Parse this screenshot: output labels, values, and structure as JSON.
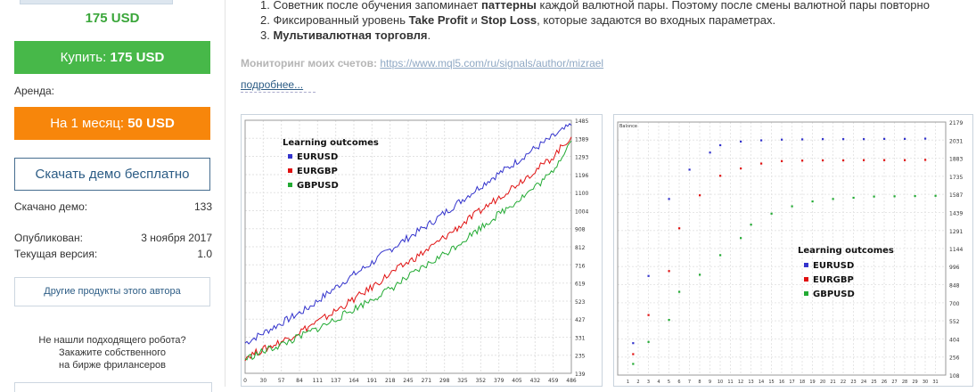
{
  "sidebar": {
    "price": "175 USD",
    "buy_label": "Купить:",
    "buy_price": "175 USD",
    "rent_label": "Аренда:",
    "rent_button_label": "На 1 месяц:",
    "rent_button_price": "50 USD",
    "demo_button": "Скачать демо бесплатно",
    "downloaded_label": "Скачано демо:",
    "downloaded_value": "133",
    "published_label": "Опубликован:",
    "published_value": "3 ноября 2017",
    "version_label": "Текущая версия:",
    "version_value": "1.0",
    "other_products": "Другие продукты этого автора",
    "freelance_line1": "Не нашли подходящего робота?",
    "freelance_line2": "Закажите собственного",
    "freelance_line3": "на бирже фрилансеров"
  },
  "description": {
    "items": [
      {
        "num": "1.",
        "pre": "Советник после обучения запоминает ",
        "bold": "паттерны",
        "post": " каждой валютной пары. Поэтому после смены валютной пары повторно"
      },
      {
        "num": "2.",
        "pre": "Фиксированный уровень ",
        "bold": "Take Profit",
        "mid": " и ",
        "bold2": "Stop Loss",
        "post": ", которые задаются во входных параметрах."
      },
      {
        "num": "3.",
        "pre": "",
        "bold": "Мультивалютная торговля",
        "post": "."
      }
    ],
    "monitoring_label": "Мониторинг моих счетов:",
    "monitoring_url": "https://www.mql5.com/ru/signals/author/mizrael",
    "more_link": "подробнее..."
  },
  "colors": {
    "buy": "#47b849",
    "rent": "#f7860b",
    "price": "#3aa63a",
    "eurusd": "#3333cc",
    "eurgbp": "#e01010",
    "gbpusd": "#22aa33"
  },
  "chart_data": [
    {
      "type": "line",
      "legend_title": "Learning outcomes",
      "series": [
        {
          "name": "EURUSD",
          "values": [
            300,
            360,
            420,
            480,
            560,
            640,
            710,
            790,
            860,
            930,
            1010,
            1090,
            1170,
            1240,
            1320,
            1390,
            1460
          ]
        },
        {
          "name": "EURGBP",
          "values": [
            225,
            270,
            320,
            380,
            440,
            510,
            580,
            660,
            730,
            800,
            880,
            960,
            1040,
            1120,
            1200,
            1280,
            1400
          ]
        },
        {
          "name": "GBPUSD",
          "values": [
            215,
            260,
            300,
            350,
            400,
            460,
            520,
            580,
            650,
            720,
            790,
            870,
            950,
            1030,
            1110,
            1200,
            1380
          ]
        }
      ],
      "x_ticks": [
        "0",
        "30",
        "57",
        "84",
        "111",
        "137",
        "164",
        "191",
        "218",
        "245",
        "271",
        "298",
        "325",
        "352",
        "379",
        "405",
        "432",
        "459",
        "486"
      ],
      "y_ticks": [
        "1485",
        "1389",
        "1293",
        "1196",
        "1100",
        "1004",
        "908",
        "812",
        "716",
        "619",
        "523",
        "427",
        "331",
        "235",
        "139"
      ],
      "ylim": [
        139,
        1485
      ],
      "legend_position": "top-left"
    },
    {
      "type": "scatter",
      "title": "Balance",
      "legend_title": "Learning outcomes",
      "x": [
        1,
        2,
        3,
        4,
        5,
        6,
        7,
        8,
        9,
        10,
        11,
        12,
        13,
        14,
        15,
        16,
        17,
        18,
        19,
        20,
        21,
        22,
        23,
        24,
        25,
        26,
        27,
        28,
        29,
        30,
        31
      ],
      "series": [
        {
          "name": "EURUSD",
          "points": [
            [
              1.5,
              370
            ],
            [
              3,
              920
            ],
            [
              5,
              1550
            ],
            [
              7,
              1790
            ],
            [
              9,
              1930
            ],
            [
              10,
              1990
            ],
            [
              12,
              2020
            ],
            [
              14,
              2030
            ],
            [
              16,
              2036
            ],
            [
              18,
              2038
            ],
            [
              20,
              2040
            ],
            [
              22,
              2040
            ],
            [
              24,
              2040
            ],
            [
              26,
              2042
            ],
            [
              28,
              2042
            ],
            [
              30,
              2044
            ]
          ]
        },
        {
          "name": "EURGBP",
          "points": [
            [
              1.5,
              280
            ],
            [
              3,
              600
            ],
            [
              5,
              960
            ],
            [
              6,
              1310
            ],
            [
              8,
              1580
            ],
            [
              10,
              1740
            ],
            [
              12,
              1800
            ],
            [
              14,
              1840
            ],
            [
              16,
              1860
            ],
            [
              18,
              1864
            ],
            [
              20,
              1866
            ],
            [
              22,
              1866
            ],
            [
              24,
              1868
            ],
            [
              26,
              1868
            ],
            [
              28,
              1868
            ],
            [
              30,
              1870
            ]
          ]
        },
        {
          "name": "GBPUSD",
          "points": [
            [
              1.5,
              200
            ],
            [
              3,
              380
            ],
            [
              5,
              560
            ],
            [
              6,
              790
            ],
            [
              8,
              930
            ],
            [
              10,
              1090
            ],
            [
              12,
              1230
            ],
            [
              13,
              1340
            ],
            [
              15,
              1430
            ],
            [
              17,
              1490
            ],
            [
              19,
              1530
            ],
            [
              21,
              1550
            ],
            [
              23,
              1560
            ],
            [
              25,
              1570
            ],
            [
              27,
              1572
            ],
            [
              29,
              1574
            ],
            [
              31,
              1576
            ]
          ]
        }
      ],
      "y_ticks": [
        "2179",
        "2031",
        "1883",
        "1735",
        "1587",
        "1439",
        "1291",
        "1144",
        "996",
        "848",
        "700",
        "552",
        "404",
        "256",
        "108"
      ],
      "x_ticks": [
        "1",
        "2",
        "3",
        "4",
        "5",
        "6",
        "7",
        "8",
        "9",
        "10",
        "11",
        "12",
        "13",
        "14",
        "15",
        "16",
        "17",
        "18",
        "19",
        "20",
        "21",
        "22",
        "23",
        "24",
        "25",
        "26",
        "27",
        "28",
        "29",
        "30",
        "31"
      ],
      "ylim": [
        108,
        2179
      ],
      "xlim": [
        0,
        32
      ],
      "legend_position": "center-right"
    }
  ]
}
